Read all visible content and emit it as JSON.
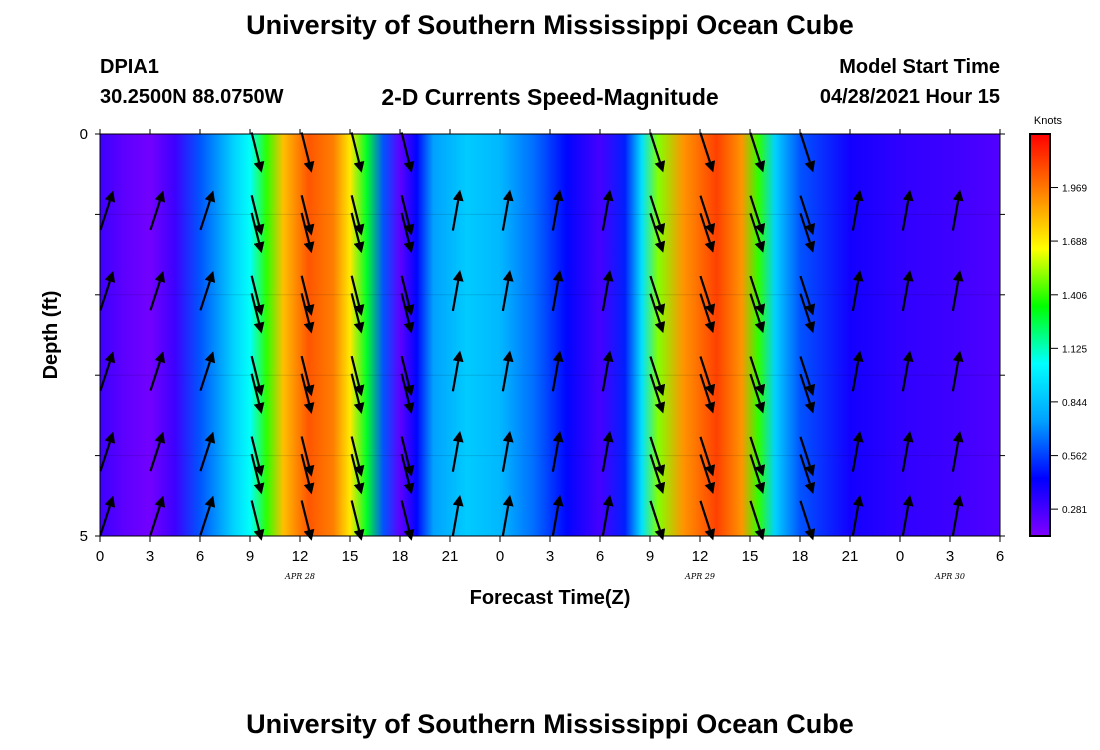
{
  "header": {
    "title": "University of Southern Mississippi Ocean Cube",
    "station": "DPIA1",
    "latlon": "30.2500N  88.0750W",
    "subtitle": "2-D Currents Speed-Magnitude",
    "model_start_label": "Model Start Time",
    "model_start_value": "04/28/2021 Hour 15"
  },
  "footer": {
    "title": "University of Southern Mississippi Ocean Cube"
  },
  "chart_data": {
    "type": "heatmap",
    "xlabel": "Forecast Time(Z)",
    "ylabel": "Depth (ft)",
    "x_tick_labels": [
      "0",
      "3",
      "6",
      "9",
      "12",
      "15",
      "18",
      "21",
      "0",
      "3",
      "6",
      "9",
      "12",
      "15",
      "18",
      "21",
      "0",
      "3",
      "6"
    ],
    "x_range_hours": [
      0,
      54
    ],
    "date_labels": [
      {
        "text": "APR  28",
        "at_hour": 12
      },
      {
        "text": "APR  29",
        "at_hour": 36
      },
      {
        "text": "APR  30",
        "at_hour": 51
      }
    ],
    "y_ticks": [
      "0",
      "5"
    ],
    "y_range": [
      0,
      5
    ],
    "depth_rows": 5,
    "colorbar": {
      "label": "Knots",
      "ticks": [
        0.281,
        0.562,
        0.844,
        1.125,
        1.406,
        1.688,
        1.969
      ],
      "tick_labels": [
        "0.281",
        "0.562",
        "0.844",
        "1.125",
        "1.406",
        "1.688",
        "1.969"
      ],
      "range": [
        0.14,
        2.25
      ],
      "colors": [
        "#8000ff",
        "#0000ff",
        "#00a0ff",
        "#00ffff",
        "#00ff00",
        "#ffff00",
        "#ff8000",
        "#ff0000"
      ]
    },
    "speed_by_hour": [
      {
        "hour": 0,
        "speed": 0.3
      },
      {
        "hour": 1.5,
        "speed": 0.22
      },
      {
        "hour": 3,
        "speed": 0.17
      },
      {
        "hour": 4.5,
        "speed": 0.3
      },
      {
        "hour": 6,
        "speed": 0.6
      },
      {
        "hour": 8,
        "speed": 0.9
      },
      {
        "hour": 9,
        "speed": 1.05
      },
      {
        "hour": 10,
        "speed": 1.4
      },
      {
        "hour": 11,
        "speed": 1.8
      },
      {
        "hour": 12.5,
        "speed": 2.05
      },
      {
        "hour": 14,
        "speed": 1.95
      },
      {
        "hour": 15,
        "speed": 1.7
      },
      {
        "hour": 16,
        "speed": 1.3
      },
      {
        "hour": 17,
        "speed": 0.6
      },
      {
        "hour": 18,
        "speed": 0.22
      },
      {
        "hour": 19,
        "speed": 0.45
      },
      {
        "hour": 20,
        "speed": 0.75
      },
      {
        "hour": 22,
        "speed": 0.88
      },
      {
        "hour": 24,
        "speed": 0.82
      },
      {
        "hour": 26,
        "speed": 0.65
      },
      {
        "hour": 28,
        "speed": 0.45
      },
      {
        "hour": 30,
        "speed": 0.28
      },
      {
        "hour": 31.5,
        "speed": 0.5
      },
      {
        "hour": 32.5,
        "speed": 0.95
      },
      {
        "hour": 33.5,
        "speed": 1.5
      },
      {
        "hour": 35,
        "speed": 1.9
      },
      {
        "hour": 37,
        "speed": 2.1
      },
      {
        "hour": 38.5,
        "speed": 1.9
      },
      {
        "hour": 39.5,
        "speed": 1.4
      },
      {
        "hour": 40.5,
        "speed": 0.9
      },
      {
        "hour": 42,
        "speed": 0.6
      },
      {
        "hour": 45,
        "speed": 0.4
      },
      {
        "hour": 48,
        "speed": 0.33
      },
      {
        "hour": 51,
        "speed": 0.3
      },
      {
        "hour": 54,
        "speed": 0.25
      }
    ],
    "current_vectors": {
      "hours_row_a": [
        0,
        3,
        6,
        9,
        12,
        15,
        18,
        21,
        24,
        27,
        30,
        33,
        36,
        39,
        42,
        45,
        48,
        51
      ],
      "hours_row_b": [
        9,
        12,
        15,
        18,
        33,
        36,
        39,
        42
      ],
      "direction_by_phase": [
        {
          "from_hour": 0,
          "to_hour": 8,
          "direction_deg": 18
        },
        {
          "from_hour": 8,
          "to_hour": 19,
          "direction_deg": 166
        },
        {
          "from_hour": 19,
          "to_hour": 32,
          "direction_deg": 10
        },
        {
          "from_hour": 32,
          "to_hour": 43,
          "direction_deg": 162
        },
        {
          "from_hour": 43,
          "to_hour": 54,
          "direction_deg": 10
        }
      ]
    }
  }
}
